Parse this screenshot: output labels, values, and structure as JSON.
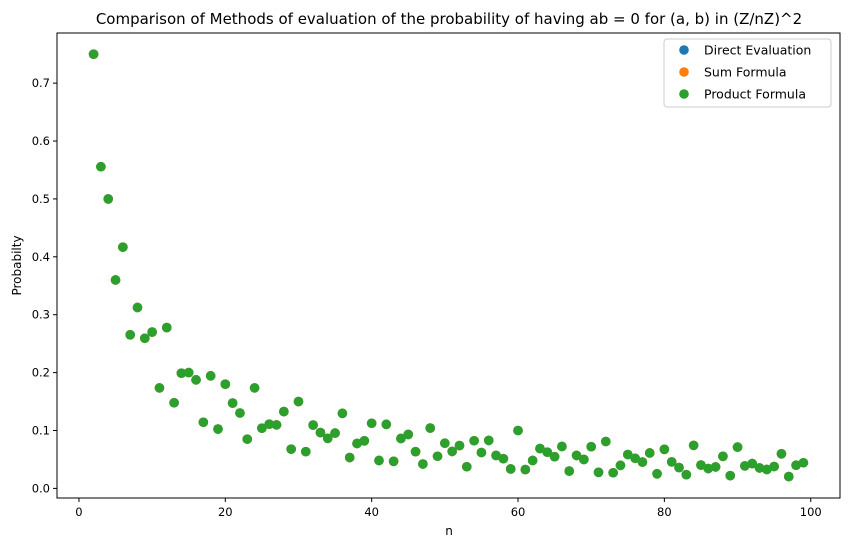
{
  "chart_data": {
    "type": "scatter",
    "title": "Comparison of Methods of evaluation of the probability of having ab = 0 for (a, b) in (Z/nZ)^2",
    "xlabel": "n",
    "ylabel": "Probabilty",
    "xlim": [
      -3,
      104
    ],
    "ylim": [
      -0.0166,
      0.7866
    ],
    "xticks": [
      0,
      20,
      40,
      60,
      80,
      100
    ],
    "xtick_labels": [
      "0",
      "20",
      "40",
      "60",
      "80",
      "100"
    ],
    "yticks": [
      0.0,
      0.1,
      0.2,
      0.3,
      0.4,
      0.5,
      0.6,
      0.7
    ],
    "ytick_labels": [
      "0.0",
      "0.1",
      "0.2",
      "0.3",
      "0.4",
      "0.5",
      "0.6",
      "0.7"
    ],
    "grid": false,
    "legend_position": "top-right",
    "x": [
      2,
      3,
      4,
      5,
      6,
      7,
      8,
      9,
      10,
      11,
      12,
      13,
      14,
      15,
      16,
      17,
      18,
      19,
      20,
      21,
      22,
      23,
      24,
      25,
      26,
      27,
      28,
      29,
      30,
      31,
      32,
      33,
      34,
      35,
      36,
      37,
      38,
      39,
      40,
      41,
      42,
      43,
      44,
      45,
      46,
      47,
      48,
      49,
      50,
      51,
      52,
      53,
      54,
      55,
      56,
      57,
      58,
      59,
      60,
      61,
      62,
      63,
      64,
      65,
      66,
      67,
      68,
      69,
      70,
      71,
      72,
      73,
      74,
      75,
      76,
      77,
      78,
      79,
      80,
      81,
      82,
      83,
      84,
      85,
      86,
      87,
      88,
      89,
      90,
      91,
      92,
      93,
      94,
      95,
      96,
      97,
      98,
      99
    ],
    "series": [
      {
        "name": "Direct Evaluation",
        "color": "#1f77b4",
        "values": [
          0.75,
          0.5556,
          0.5,
          0.36,
          0.4167,
          0.2653,
          0.3125,
          0.2593,
          0.27,
          0.1736,
          0.2778,
          0.1479,
          0.199,
          0.2,
          0.1875,
          0.1142,
          0.1944,
          0.1025,
          0.18,
          0.1474,
          0.1302,
          0.0851,
          0.1736,
          0.104,
          0.1109,
          0.1097,
          0.1327,
          0.0678,
          0.15,
          0.0635,
          0.1094,
          0.0964,
          0.0865,
          0.0955,
          0.1296,
          0.0533,
          0.0776,
          0.0822,
          0.1125,
          0.0482,
          0.1106,
          0.0468,
          0.0862,
          0.0932,
          0.0634,
          0.0421,
          0.1042,
          0.0555,
          0.078,
          0.0639,
          0.074,
          0.0374,
          0.0823,
          0.062,
          0.0829,
          0.0569,
          0.0513,
          0.0336,
          0.1,
          0.0325,
          0.0482,
          0.0688,
          0.0625,
          0.0547,
          0.0724,
          0.0299,
          0.057,
          0.05,
          0.072,
          0.0278,
          0.081,
          0.027,
          0.0398,
          0.0585,
          0.052,
          0.0455,
          0.0612,
          0.0252,
          0.0675,
          0.0458,
          0.036,
          0.0237,
          0.0743,
          0.0403,
          0.0343,
          0.0371,
          0.0554,
          0.022,
          0.0713,
          0.0389,
          0.0428,
          0.0354,
          0.0327,
          0.0378,
          0.0597,
          0.0204,
          0.04,
          0.0443
        ]
      },
      {
        "name": "Sum Formula",
        "color": "#ff7f0e",
        "values": [
          0.75,
          0.5556,
          0.5,
          0.36,
          0.4167,
          0.2653,
          0.3125,
          0.2593,
          0.27,
          0.1736,
          0.2778,
          0.1479,
          0.199,
          0.2,
          0.1875,
          0.1142,
          0.1944,
          0.1025,
          0.18,
          0.1474,
          0.1302,
          0.0851,
          0.1736,
          0.104,
          0.1109,
          0.1097,
          0.1327,
          0.0678,
          0.15,
          0.0635,
          0.1094,
          0.0964,
          0.0865,
          0.0955,
          0.1296,
          0.0533,
          0.0776,
          0.0822,
          0.1125,
          0.0482,
          0.1106,
          0.0468,
          0.0862,
          0.0932,
          0.0634,
          0.0421,
          0.1042,
          0.0555,
          0.078,
          0.0639,
          0.074,
          0.0374,
          0.0823,
          0.062,
          0.0829,
          0.0569,
          0.0513,
          0.0336,
          0.1,
          0.0325,
          0.0482,
          0.0688,
          0.0625,
          0.0547,
          0.0724,
          0.0299,
          0.057,
          0.05,
          0.072,
          0.0278,
          0.081,
          0.027,
          0.0398,
          0.0585,
          0.052,
          0.0455,
          0.0612,
          0.0252,
          0.0675,
          0.0458,
          0.036,
          0.0237,
          0.0743,
          0.0403,
          0.0343,
          0.0371,
          0.0554,
          0.022,
          0.0713,
          0.0389,
          0.0428,
          0.0354,
          0.0327,
          0.0378,
          0.0597,
          0.0204,
          0.04,
          0.0443
        ]
      },
      {
        "name": "Product Formula",
        "color": "#2ca02c",
        "values": [
          0.75,
          0.5556,
          0.5,
          0.36,
          0.4167,
          0.2653,
          0.3125,
          0.2593,
          0.27,
          0.1736,
          0.2778,
          0.1479,
          0.199,
          0.2,
          0.1875,
          0.1142,
          0.1944,
          0.1025,
          0.18,
          0.1474,
          0.1302,
          0.0851,
          0.1736,
          0.104,
          0.1109,
          0.1097,
          0.1327,
          0.0678,
          0.15,
          0.0635,
          0.1094,
          0.0964,
          0.0865,
          0.0955,
          0.1296,
          0.0533,
          0.0776,
          0.0822,
          0.1125,
          0.0482,
          0.1106,
          0.0468,
          0.0862,
          0.0932,
          0.0634,
          0.0421,
          0.1042,
          0.0555,
          0.078,
          0.0639,
          0.074,
          0.0374,
          0.0823,
          0.062,
          0.0829,
          0.0569,
          0.0513,
          0.0336,
          0.1,
          0.0325,
          0.0482,
          0.0688,
          0.0625,
          0.0547,
          0.0724,
          0.0299,
          0.057,
          0.05,
          0.072,
          0.0278,
          0.081,
          0.027,
          0.0398,
          0.0585,
          0.052,
          0.0455,
          0.0612,
          0.0252,
          0.0675,
          0.0458,
          0.036,
          0.0237,
          0.0743,
          0.0403,
          0.0343,
          0.0371,
          0.0554,
          0.022,
          0.0713,
          0.0389,
          0.0428,
          0.0354,
          0.0327,
          0.0378,
          0.0597,
          0.0204,
          0.04,
          0.0443
        ]
      }
    ]
  }
}
